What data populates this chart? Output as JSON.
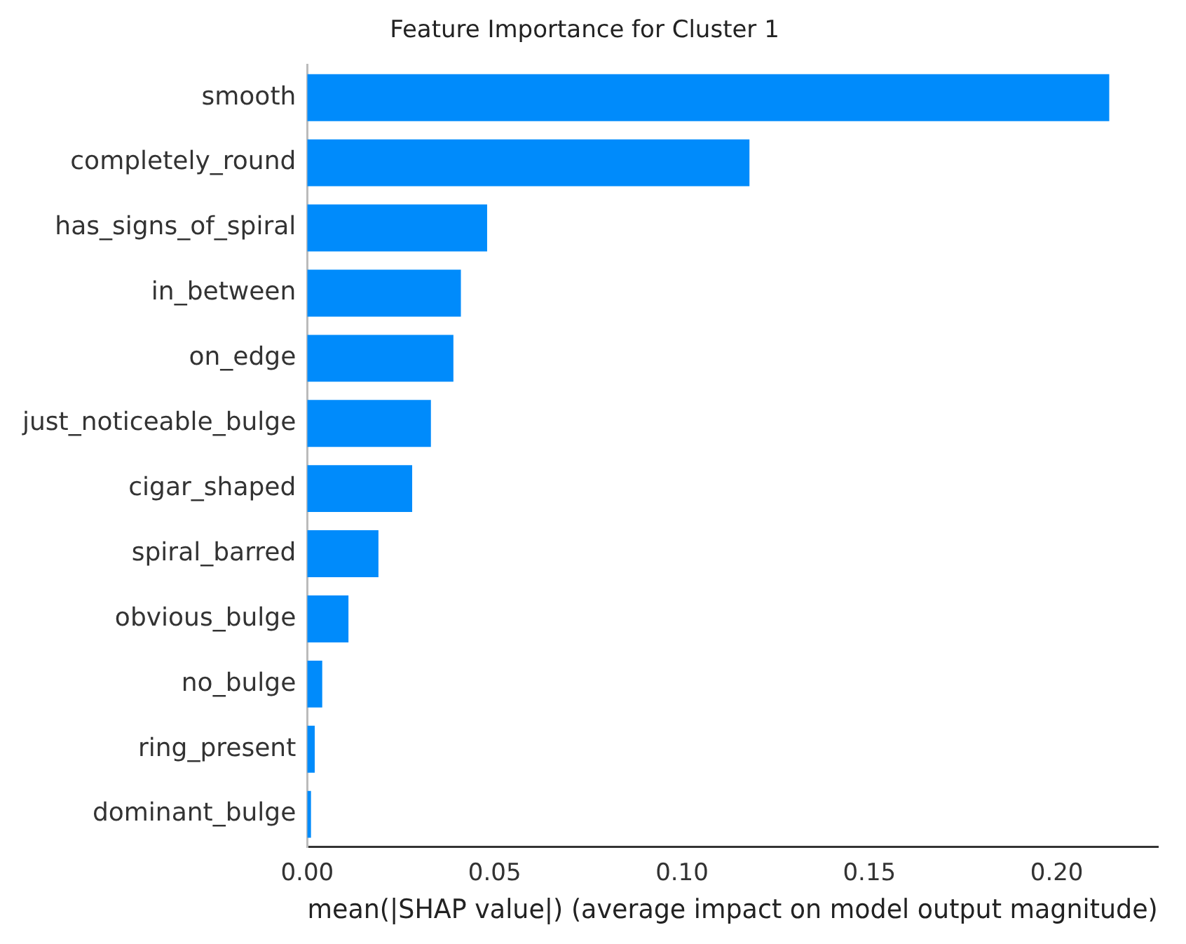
{
  "chart_data": {
    "type": "bar",
    "orientation": "horizontal",
    "title": "Feature Importance for Cluster 1",
    "xlabel": "mean(|SHAP value|) (average impact on model output magnitude)",
    "categories": [
      "smooth",
      "completely_round",
      "has_signs_of_spiral",
      "in_between",
      "on_edge",
      "just_noticeable_bulge",
      "cigar_shaped",
      "spiral_barred",
      "obvious_bulge",
      "no_bulge",
      "ring_present",
      "dominant_bulge"
    ],
    "values": [
      0.214,
      0.118,
      0.048,
      0.041,
      0.039,
      0.033,
      0.028,
      0.019,
      0.011,
      0.004,
      0.002,
      0.001
    ],
    "color": "#008bfb",
    "xlim": [
      0,
      0.227
    ],
    "xticks": [
      {
        "value": 0,
        "label": "0.00"
      },
      0.05,
      {
        "value": 0.1,
        "label": "0.10"
      },
      0.15,
      {
        "value": 0.2,
        "label": "0.20"
      }
    ],
    "grid": false,
    "legend": false
  }
}
